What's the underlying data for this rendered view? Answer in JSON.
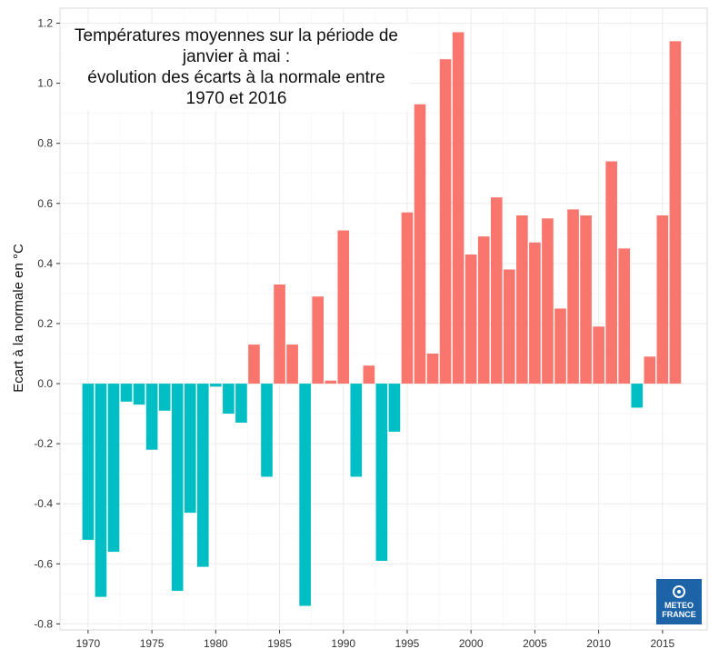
{
  "chart_data": {
    "type": "bar",
    "title_lines": [
      "Températures moyennes sur la période de",
      "janvier à mai :",
      "évolution des écarts à la normale entre",
      "1970 et 2016"
    ],
    "xlabel": "",
    "ylabel": "Ecart à la normale en °C",
    "x": [
      1970,
      1971,
      1972,
      1973,
      1974,
      1975,
      1976,
      1977,
      1978,
      1979,
      1980,
      1981,
      1982,
      1983,
      1984,
      1985,
      1986,
      1987,
      1988,
      1989,
      1990,
      1991,
      1992,
      1993,
      1994,
      1995,
      1996,
      1997,
      1998,
      1999,
      2000,
      2001,
      2002,
      2003,
      2004,
      2005,
      2006,
      2007,
      2008,
      2009,
      2010,
      2011,
      2012,
      2013,
      2014,
      2015,
      2016
    ],
    "values": [
      -0.52,
      -0.71,
      -0.56,
      -0.06,
      -0.07,
      -0.22,
      -0.09,
      -0.69,
      -0.43,
      -0.61,
      -0.01,
      -0.1,
      -0.13,
      0.13,
      -0.31,
      0.33,
      0.13,
      -0.74,
      0.29,
      0.01,
      0.51,
      -0.31,
      0.06,
      -0.59,
      -0.16,
      0.57,
      0.93,
      0.1,
      1.08,
      1.17,
      0.43,
      0.49,
      0.62,
      0.38,
      0.56,
      0.47,
      0.55,
      0.25,
      0.58,
      0.56,
      0.19,
      0.74,
      0.45,
      -0.08,
      0.09,
      0.56,
      1.14
    ],
    "ylim": [
      -0.82,
      1.25
    ],
    "xlim": [
      1967.8,
      2018.5
    ],
    "yticks": [
      -0.8,
      -0.6,
      -0.4,
      -0.2,
      0.0,
      0.2,
      0.4,
      0.6,
      0.8,
      1.0,
      1.2
    ],
    "ytick_labels": [
      "-0.8",
      "-0.6",
      "-0.4",
      "-0.2",
      "0.0",
      "0.2",
      "0.4",
      "0.6",
      "0.8",
      "1.0",
      "1.2"
    ],
    "xticks": [
      1970,
      1975,
      1980,
      1985,
      1990,
      1995,
      2000,
      2005,
      2010,
      2015
    ],
    "xtick_labels": [
      "1970",
      "1975",
      "1980",
      "1985",
      "1990",
      "1995",
      "2000",
      "2005",
      "2010",
      "2015"
    ],
    "grid": true,
    "legend": "none",
    "colors": {
      "positive": "#f8766d",
      "negative": "#00bfc4",
      "grid": "#ebebeb",
      "border": "#d9d9d9"
    }
  },
  "logo": {
    "line1": "METEO",
    "line2": "FRANCE"
  }
}
